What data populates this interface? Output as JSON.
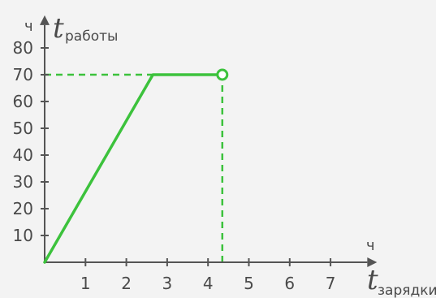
{
  "chart_data": {
    "type": "line",
    "x_axis": {
      "unit": "ч",
      "var": "t",
      "sub": "зарядки",
      "ticks": [
        1,
        2,
        3,
        4,
        5,
        6,
        7
      ],
      "range": [
        0,
        7.8
      ]
    },
    "y_axis": {
      "unit": "ч",
      "var": "t",
      "sub": "работы",
      "ticks": [
        10,
        20,
        30,
        40,
        50,
        60,
        70,
        80
      ],
      "range": [
        0,
        87
      ]
    },
    "series": [
      {
        "x": [
          0,
          2.65,
          4.35
        ],
        "y": [
          0,
          70,
          70
        ],
        "color": "#3cc23c"
      }
    ],
    "endpoint": {
      "x": 4.35,
      "y": 70,
      "style": "open-circle"
    },
    "guide_lines": [
      {
        "type": "horizontal",
        "y": 70,
        "from_x": 0,
        "to_x": 4.35
      },
      {
        "type": "vertical",
        "x": 4.35,
        "from_y": 0,
        "to_y": 70
      }
    ],
    "colors": {
      "axis": "#555555",
      "series": "#3cc23c",
      "text": "#4a4a4a"
    }
  }
}
